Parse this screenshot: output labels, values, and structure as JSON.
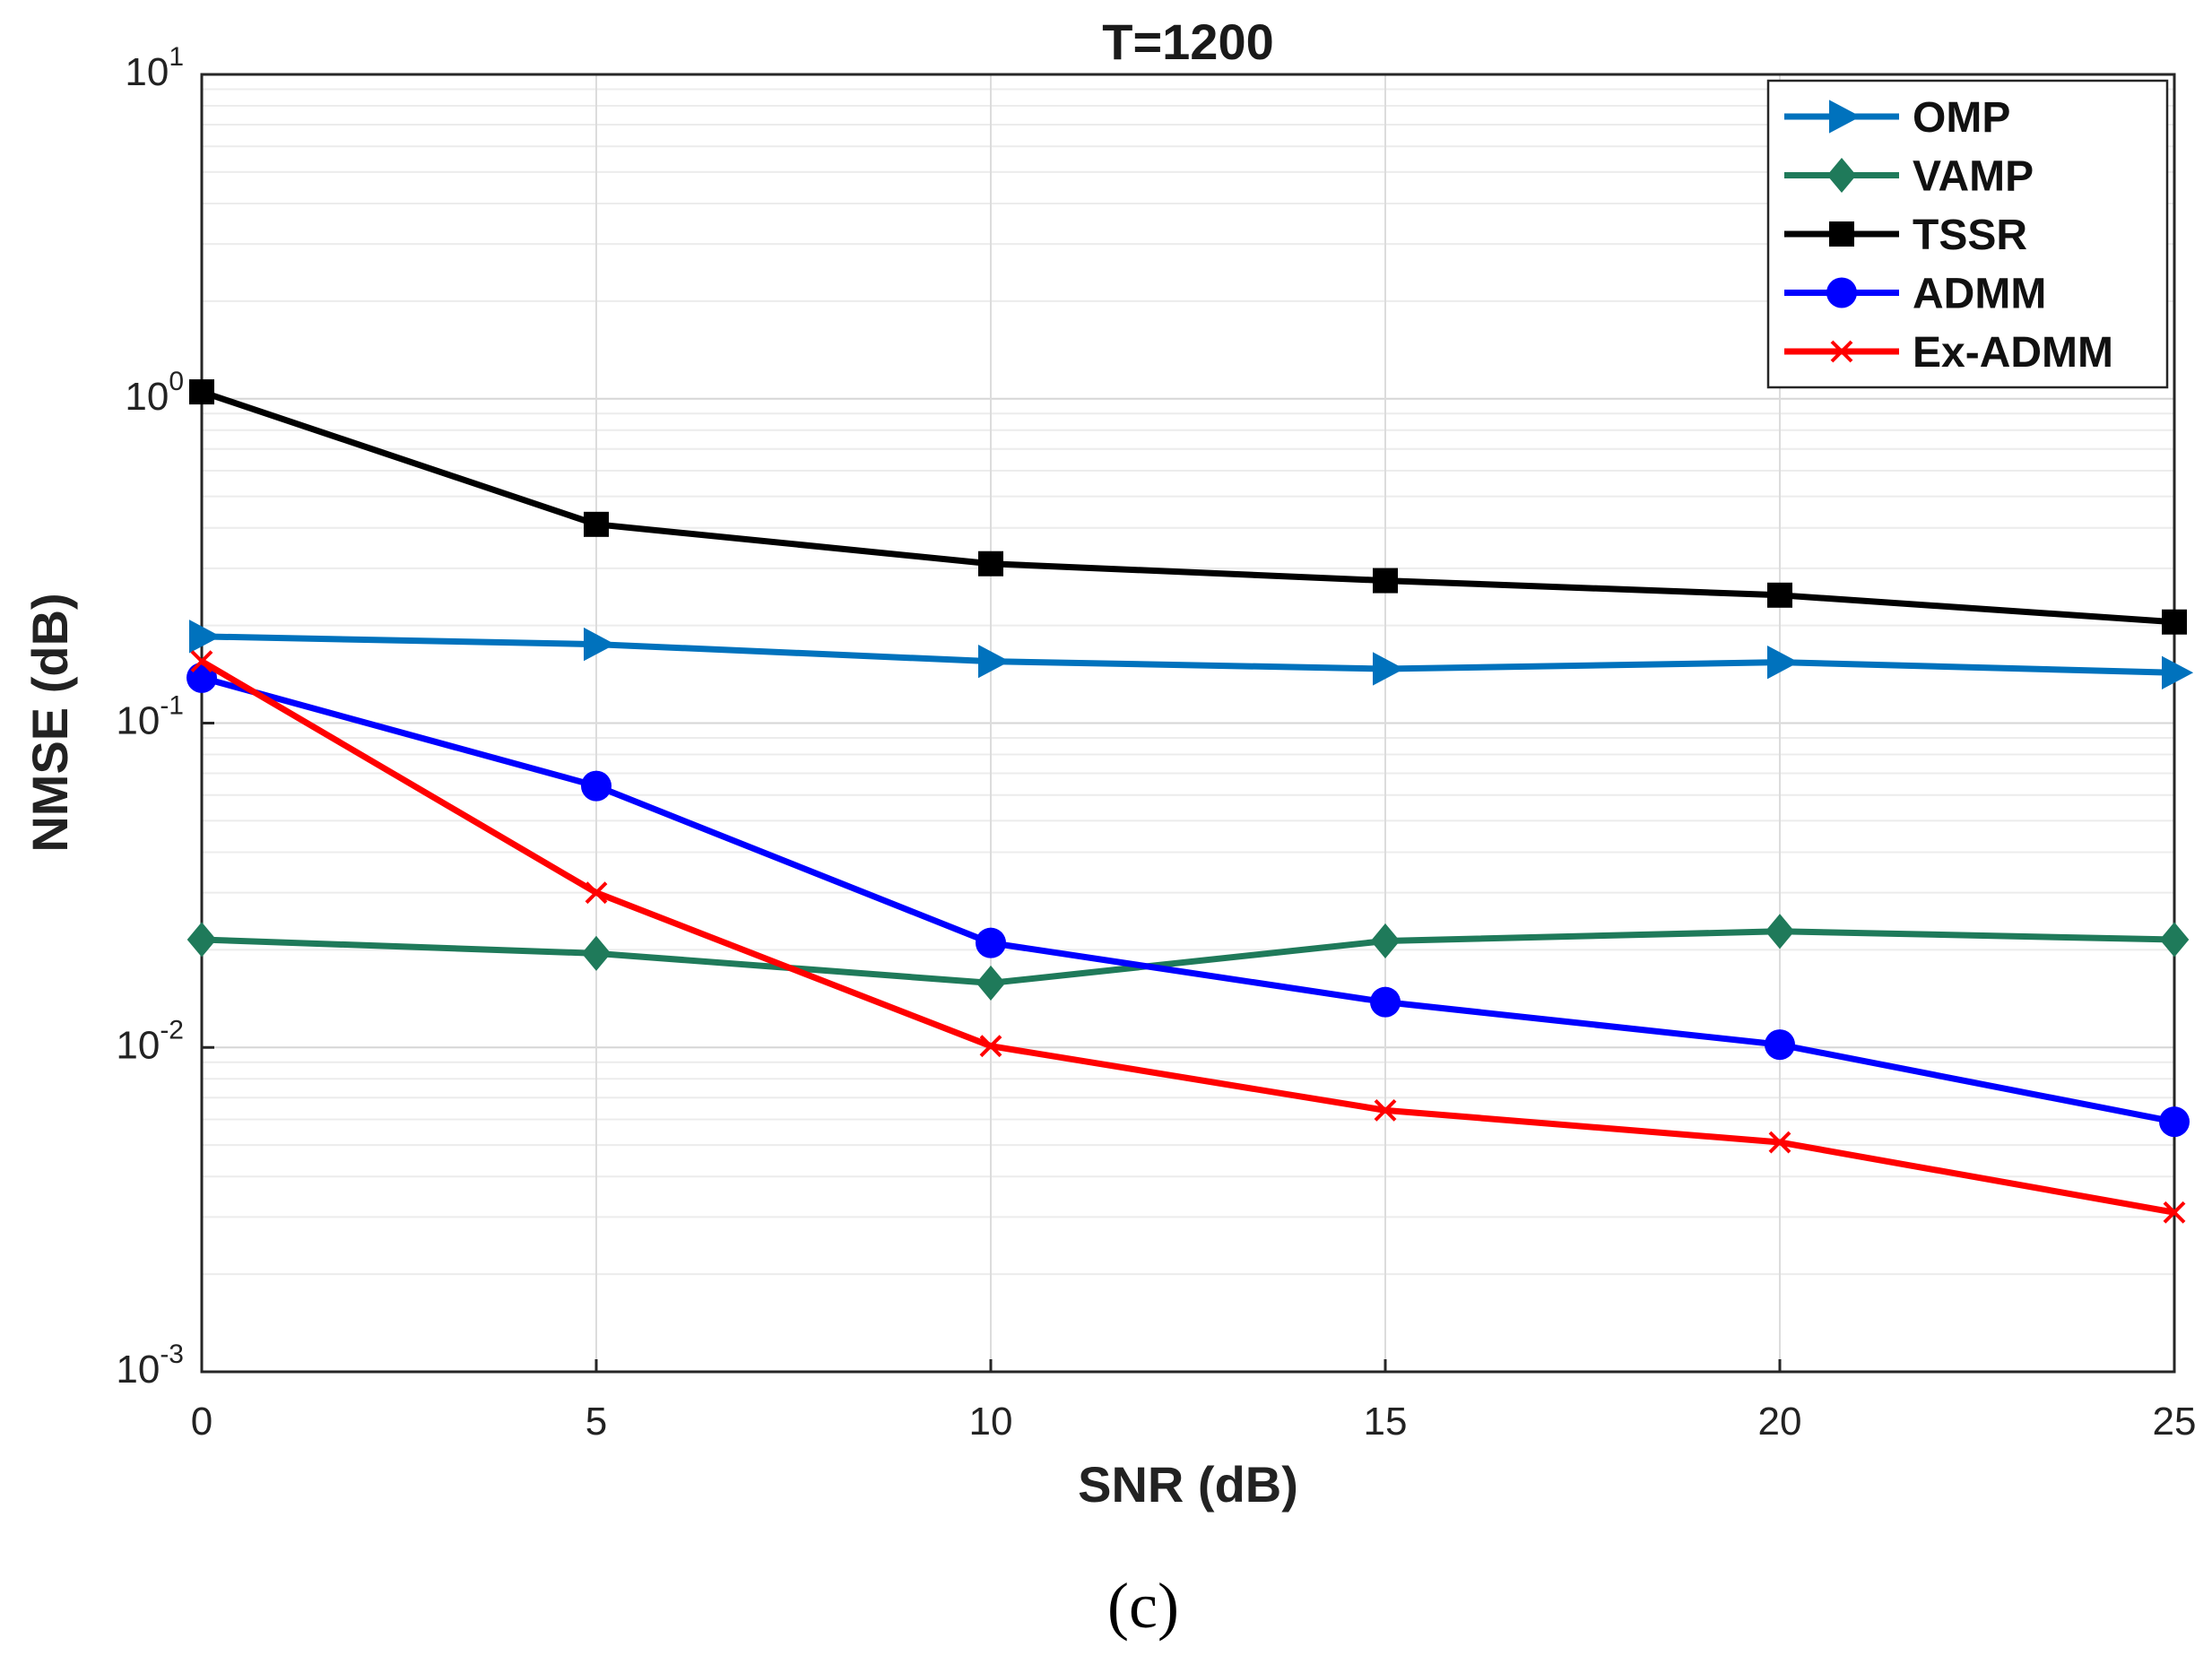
{
  "chart_data": {
    "type": "line",
    "title": "T=1200",
    "xlabel": "SNR (dB)",
    "ylabel": "NMSE (dB)",
    "yscale": "log",
    "xlim": [
      0,
      25
    ],
    "ylim": [
      0.001,
      10
    ],
    "grid": true,
    "legend_position": "top-right",
    "x": [
      0,
      5,
      10,
      15,
      20,
      25
    ],
    "x_ticks": [
      "0",
      "5",
      "10",
      "15",
      "20",
      "25"
    ],
    "y_ticks": [
      {
        "value": 10,
        "base": "10",
        "exp": "1"
      },
      {
        "value": 1,
        "base": "10",
        "exp": "0"
      },
      {
        "value": 0.1,
        "base": "10",
        "exp": "-1"
      },
      {
        "value": 0.01,
        "base": "10",
        "exp": "-2"
      },
      {
        "value": 0.001,
        "base": "10",
        "exp": "-3"
      }
    ],
    "series": [
      {
        "name": "OMP",
        "color": "#0072BD",
        "marker": "triangle-right",
        "values": [
          0.185,
          0.175,
          0.155,
          0.147,
          0.154,
          0.143
        ]
      },
      {
        "name": "VAMP",
        "color": "#1F7A5A",
        "marker": "diamond",
        "values": [
          0.0215,
          0.0195,
          0.0158,
          0.0213,
          0.0228,
          0.0215
        ]
      },
      {
        "name": "TSSR",
        "color": "#000000",
        "marker": "square",
        "values": [
          1.05,
          0.41,
          0.31,
          0.275,
          0.248,
          0.205
        ]
      },
      {
        "name": "ADMM",
        "color": "#0000FF",
        "marker": "circle",
        "values": [
          0.138,
          0.064,
          0.021,
          0.0138,
          0.0102,
          0.0059
        ]
      },
      {
        "name": "Ex-ADMM",
        "color": "#FF0000",
        "marker": "x",
        "values": [
          0.155,
          0.03,
          0.0101,
          0.0064,
          0.0051,
          0.0031
        ]
      }
    ]
  },
  "caption": "(c)"
}
